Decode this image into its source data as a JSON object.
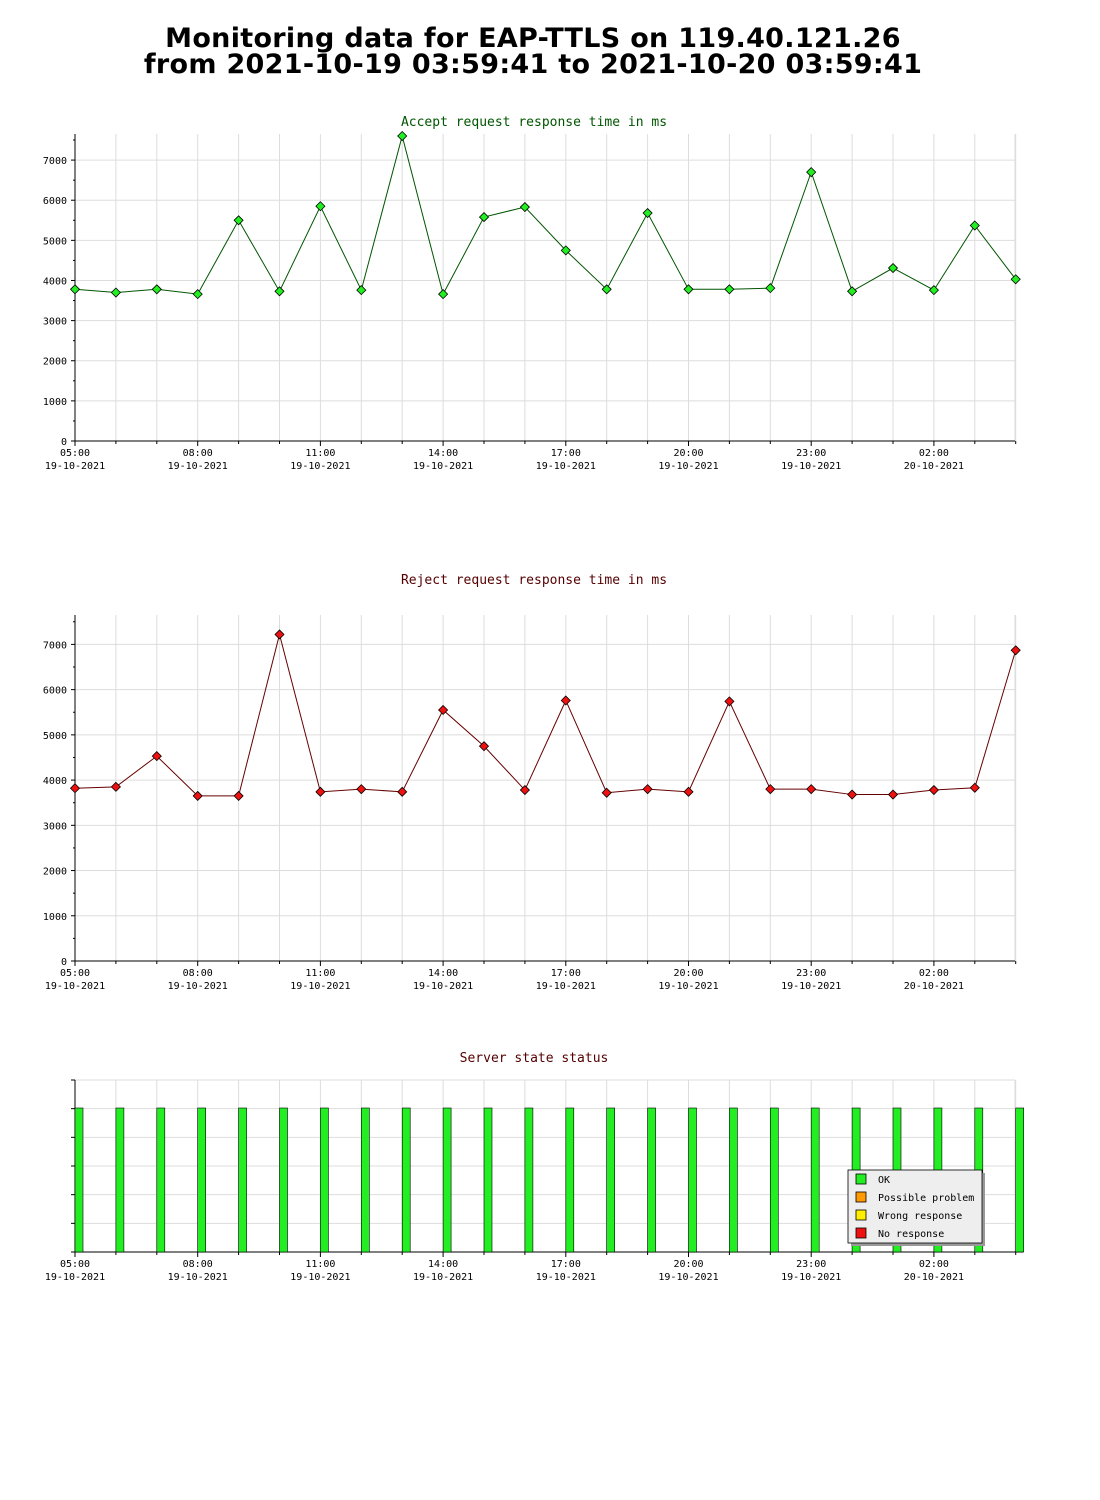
{
  "header": {
    "line1": "Monitoring data for EAP-TTLS on 119.40.121.26",
    "line2": "from 2021-10-19 03:59:41 to 2021-10-20 03:59:41"
  },
  "colors": {
    "accept_line": "#005500",
    "accept_marker": "#22ee22",
    "reject_line": "#660000",
    "reject_marker": "#ee1111",
    "accept_title": "#005500",
    "reject_title": "#550000",
    "status_title": "#550000",
    "status_ok": "#22ee22",
    "status_possible": "#ff9900",
    "status_wrong": "#ffee00",
    "status_none": "#ee1111",
    "grid": "#dddddd"
  },
  "x_ticks": [
    {
      "time": "05:00",
      "date": "19-10-2021"
    },
    {
      "time": "08:00",
      "date": "19-10-2021"
    },
    {
      "time": "11:00",
      "date": "19-10-2021"
    },
    {
      "time": "14:00",
      "date": "19-10-2021"
    },
    {
      "time": "17:00",
      "date": "19-10-2021"
    },
    {
      "time": "20:00",
      "date": "19-10-2021"
    },
    {
      "time": "23:00",
      "date": "19-10-2021"
    },
    {
      "time": "02:00",
      "date": "20-10-2021"
    }
  ],
  "chart_data": [
    {
      "type": "line",
      "title": "Accept request response time in ms",
      "xlabel": "",
      "ylabel": "",
      "ylim": [
        0,
        7650
      ],
      "y_ticks": [
        0,
        1000,
        2000,
        3000,
        4000,
        5000,
        6000,
        7000
      ],
      "grid": true,
      "x_hours": [
        0,
        1,
        2,
        3,
        4,
        5,
        6,
        7,
        8,
        9,
        10,
        11,
        12,
        13,
        14,
        15,
        16,
        17,
        18,
        19,
        20,
        21,
        22,
        23
      ],
      "values": [
        3780,
        3700,
        3780,
        3660,
        5500,
        3730,
        5850,
        3760,
        7600,
        3660,
        5580,
        5830,
        4750,
        3780,
        5680,
        3780,
        3780,
        3810,
        6700,
        3730,
        4310,
        3760,
        5370,
        4030
      ]
    },
    {
      "type": "line",
      "title": "Reject request response time in ms",
      "xlabel": "",
      "ylabel": "",
      "ylim": [
        0,
        7650
      ],
      "y_ticks": [
        0,
        1000,
        2000,
        3000,
        4000,
        5000,
        6000,
        7000
      ],
      "grid": true,
      "x_hours": [
        0,
        1,
        2,
        3,
        4,
        5,
        6,
        7,
        8,
        9,
        10,
        11,
        12,
        13,
        14,
        15,
        16,
        17,
        18,
        19,
        20,
        21,
        22,
        23
      ],
      "values": [
        3820,
        3850,
        4530,
        3650,
        3650,
        7220,
        3740,
        3800,
        3740,
        5550,
        4750,
        3780,
        5760,
        3720,
        3800,
        3740,
        5740,
        3800,
        3800,
        3680,
        3680,
        3780,
        3830,
        6870
      ]
    },
    {
      "type": "bar",
      "title": "Server state status",
      "xlabel": "",
      "ylabel": "",
      "grid": true,
      "x_hours": [
        0,
        1,
        2,
        3,
        4,
        5,
        6,
        7,
        8,
        9,
        10,
        11,
        12,
        13,
        14,
        15,
        16,
        17,
        18,
        19,
        20,
        21,
        22,
        23
      ],
      "states": [
        "OK",
        "OK",
        "OK",
        "OK",
        "OK",
        "OK",
        "OK",
        "OK",
        "OK",
        "OK",
        "OK",
        "OK",
        "OK",
        "OK",
        "OK",
        "OK",
        "OK",
        "OK",
        "OK",
        "OK",
        "OK",
        "OK",
        "OK",
        "OK"
      ],
      "legend": [
        "OK",
        "Possible problem",
        "Wrong response",
        "No response"
      ],
      "legend_position": "bottom-right"
    }
  ]
}
